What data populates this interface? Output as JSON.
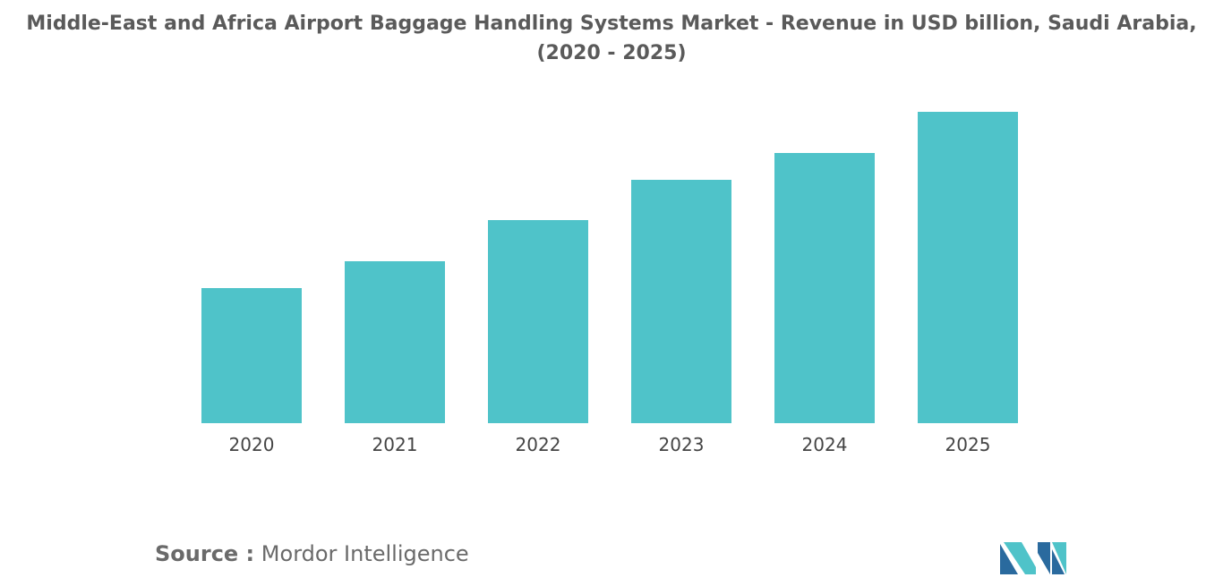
{
  "chart_data": {
    "type": "bar",
    "title": "Middle-East and Africa Airport Baggage Handling Systems Market - Revenue in USD billion, Saudi Arabia, (2020 - 2025)",
    "categories": [
      "2020",
      "2021",
      "2022",
      "2023",
      "2024",
      "2025"
    ],
    "values": [
      1.51,
      1.81,
      2.27,
      2.72,
      3.02,
      3.48
    ],
    "color": "#4fc3c9",
    "source_label": "Source :",
    "source": "Mordor Intelligence"
  }
}
